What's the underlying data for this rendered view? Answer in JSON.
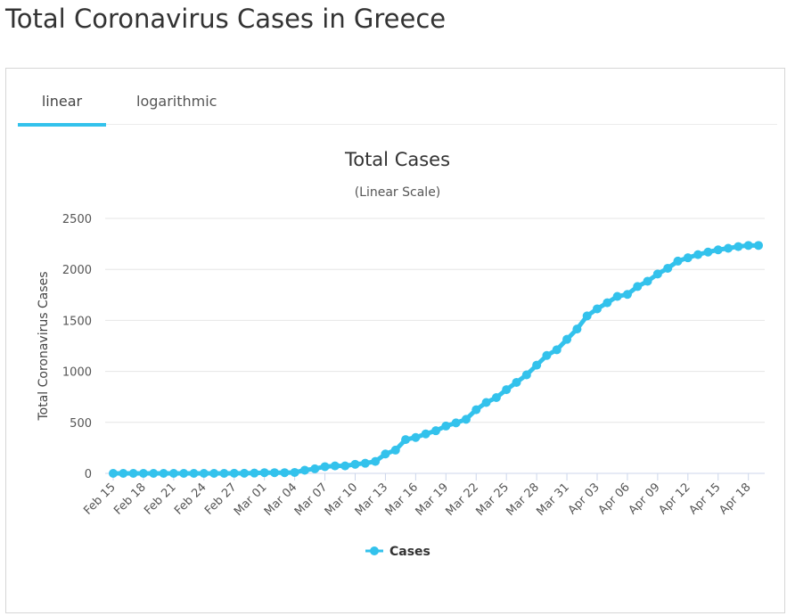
{
  "page": {
    "title": "Total Coronavirus Cases in Greece"
  },
  "tabs": [
    {
      "label": "linear",
      "active": true
    },
    {
      "label": "logarithmic",
      "active": false
    }
  ],
  "colors": {
    "series": "#33c2ec",
    "tab_underline": "#33c2ec",
    "grid": "#e6e6e6",
    "axis": "#ccd6eb"
  },
  "chart_data": {
    "type": "line",
    "title": "Total Cases",
    "subtitle": "(Linear Scale)",
    "xlabel": "",
    "ylabel": "Total Coronavirus Cases",
    "ylim": [
      0,
      2500
    ],
    "yticks": [
      0,
      500,
      1000,
      1500,
      2000,
      2500
    ],
    "grid": true,
    "legend": "bottom-center",
    "xtick_labels": [
      "Feb 15",
      "Feb 18",
      "Feb 21",
      "Feb 24",
      "Feb 27",
      "Mar 01",
      "Mar 04",
      "Mar 07",
      "Mar 10",
      "Mar 13",
      "Mar 16",
      "Mar 19",
      "Mar 22",
      "Mar 25",
      "Mar 28",
      "Mar 31",
      "Apr 03",
      "Apr 06",
      "Apr 09",
      "Apr 12",
      "Apr 15",
      "Apr 18"
    ],
    "x": [
      "Feb 15",
      "Feb 16",
      "Feb 17",
      "Feb 18",
      "Feb 19",
      "Feb 20",
      "Feb 21",
      "Feb 22",
      "Feb 23",
      "Feb 24",
      "Feb 25",
      "Feb 26",
      "Feb 27",
      "Feb 28",
      "Feb 29",
      "Mar 01",
      "Mar 02",
      "Mar 03",
      "Mar 04",
      "Mar 05",
      "Mar 06",
      "Mar 07",
      "Mar 08",
      "Mar 09",
      "Mar 10",
      "Mar 11",
      "Mar 12",
      "Mar 13",
      "Mar 14",
      "Mar 15",
      "Mar 16",
      "Mar 17",
      "Mar 18",
      "Mar 19",
      "Mar 20",
      "Mar 21",
      "Mar 22",
      "Mar 23",
      "Mar 24",
      "Mar 25",
      "Mar 26",
      "Mar 27",
      "Mar 28",
      "Mar 29",
      "Mar 30",
      "Mar 31",
      "Apr 01",
      "Apr 02",
      "Apr 03",
      "Apr 04",
      "Apr 05",
      "Apr 06",
      "Apr 07",
      "Apr 08",
      "Apr 09",
      "Apr 10",
      "Apr 11",
      "Apr 12",
      "Apr 13",
      "Apr 14",
      "Apr 15",
      "Apr 16",
      "Apr 17",
      "Apr 18",
      "Apr 19"
    ],
    "series": [
      {
        "name": "Cases",
        "values": [
          0,
          0,
          0,
          0,
          0,
          0,
          0,
          0,
          0,
          0,
          0,
          0,
          1,
          1,
          3,
          7,
          7,
          7,
          9,
          31,
          45,
          66,
          73,
          73,
          89,
          99,
          117,
          190,
          228,
          331,
          352,
          387,
          418,
          464,
          495,
          530,
          624,
          695,
          743,
          821,
          892,
          966,
          1061,
          1156,
          1212,
          1314,
          1415,
          1544,
          1613,
          1673,
          1735,
          1755,
          1832,
          1884,
          1955,
          2011,
          2081,
          2114,
          2145,
          2170,
          2192,
          2207,
          2224,
          2235,
          2235
        ]
      }
    ]
  }
}
